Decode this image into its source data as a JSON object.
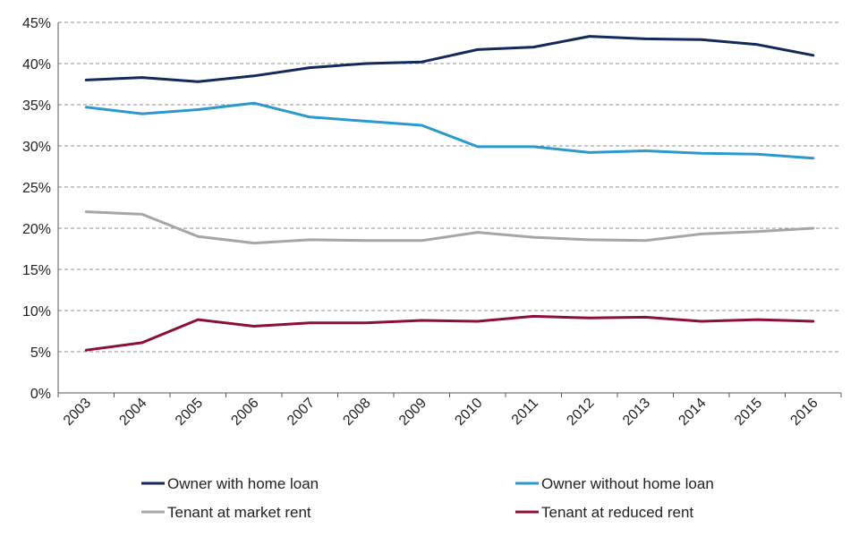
{
  "chart_data": {
    "type": "line",
    "title": "",
    "xlabel": "",
    "ylabel": "",
    "categories": [
      "2003",
      "2004",
      "2005",
      "2006",
      "2007",
      "2008",
      "2009",
      "2010",
      "2011",
      "2012",
      "2013",
      "2014",
      "2015",
      "2016"
    ],
    "ylim": [
      0,
      0.45
    ],
    "ytick_values": [
      0,
      0.05,
      0.1,
      0.15,
      0.2,
      0.25,
      0.3,
      0.35,
      0.4,
      0.45
    ],
    "ytick_labels": [
      "0%",
      "5%",
      "10%",
      "15%",
      "20%",
      "25%",
      "30%",
      "35%",
      "40%",
      "45%"
    ],
    "grid": "horizontal dashed",
    "legend_position": "bottom",
    "series": [
      {
        "name": "Owner with home loan",
        "color": "#12295a",
        "values": [
          0.38,
          0.383,
          0.378,
          0.385,
          0.395,
          0.4,
          0.402,
          0.417,
          0.42,
          0.433,
          0.43,
          0.429,
          0.423,
          0.41
        ]
      },
      {
        "name": "Owner without home loan",
        "color": "#2b99cd",
        "values": [
          0.347,
          0.339,
          0.344,
          0.352,
          0.335,
          0.33,
          0.325,
          0.299,
          0.299,
          0.292,
          0.294,
          0.291,
          0.29,
          0.285
        ]
      },
      {
        "name": "Tenant at market rent",
        "color": "#a6a6a6",
        "values": [
          0.22,
          0.217,
          0.19,
          0.182,
          0.186,
          0.185,
          0.185,
          0.195,
          0.189,
          0.186,
          0.185,
          0.193,
          0.196,
          0.2
        ]
      },
      {
        "name": "Tenant at reduced rent",
        "color": "#8b0f37",
        "values": [
          0.052,
          0.061,
          0.089,
          0.081,
          0.085,
          0.085,
          0.088,
          0.087,
          0.093,
          0.091,
          0.092,
          0.087,
          0.089,
          0.087
        ]
      }
    ]
  }
}
